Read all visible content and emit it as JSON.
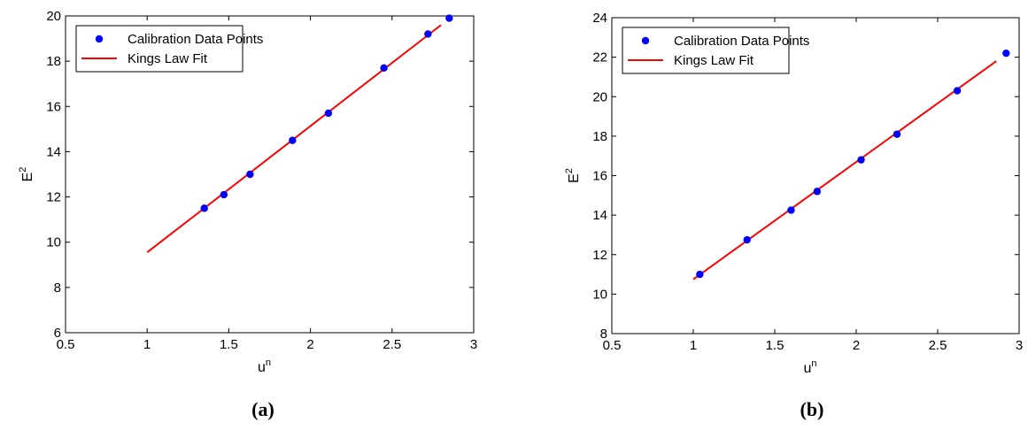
{
  "chart_data": [
    {
      "type": "scatter",
      "caption": "(a)",
      "xlabel_base": "u",
      "xlabel_sup": "n",
      "ylabel_base": "E",
      "ylabel_sup": "2",
      "xlim": [
        0.5,
        3
      ],
      "ylim": [
        6,
        20
      ],
      "xticks": [
        0.5,
        1,
        1.5,
        2,
        2.5,
        3
      ],
      "yticks": [
        6,
        8,
        10,
        12,
        14,
        16,
        18,
        20
      ],
      "xtick_labels": [
        "0.5",
        "1",
        "1.5",
        "2",
        "2.5",
        "3"
      ],
      "ytick_labels": [
        "6",
        "8",
        "10",
        "12",
        "14",
        "16",
        "18",
        "20"
      ],
      "grid": false,
      "legend_position": "top-left",
      "series": [
        {
          "name": "Calibration Data Points",
          "kind": "points",
          "color": "#0000ff",
          "x": [
            1.35,
            1.47,
            1.63,
            1.89,
            2.11,
            2.45,
            2.72,
            2.85
          ],
          "y": [
            11.5,
            12.1,
            13.0,
            14.5,
            15.7,
            17.7,
            19.2,
            19.9
          ]
        },
        {
          "name": "Kings Law Fit",
          "kind": "line",
          "color": "#ff0000",
          "x": [
            1.0,
            2.8
          ],
          "y": [
            9.55,
            19.6
          ]
        }
      ]
    },
    {
      "type": "scatter",
      "caption": "(b)",
      "xlabel_base": "u",
      "xlabel_sup": "n",
      "ylabel_base": "E",
      "ylabel_sup": "2",
      "xlim": [
        0.5,
        3
      ],
      "ylim": [
        8,
        24
      ],
      "xticks": [
        0.5,
        1,
        1.5,
        2,
        2.5,
        3
      ],
      "yticks": [
        8,
        10,
        12,
        14,
        16,
        18,
        20,
        22,
        24
      ],
      "xtick_labels": [
        "0.5",
        "1",
        "1.5",
        "2",
        "2.5",
        "3"
      ],
      "ytick_labels": [
        "8",
        "10",
        "12",
        "14",
        "16",
        "18",
        "20",
        "22",
        "24"
      ],
      "grid": false,
      "legend_position": "top-left",
      "series": [
        {
          "name": "Calibration Data Points",
          "kind": "points",
          "color": "#0000ff",
          "x": [
            1.04,
            1.33,
            1.6,
            1.76,
            2.03,
            2.25,
            2.62,
            2.92
          ],
          "y": [
            11.0,
            12.75,
            14.25,
            15.2,
            16.8,
            18.1,
            20.3,
            22.2
          ]
        },
        {
          "name": "Kings Law Fit",
          "kind": "line",
          "color": "#ff0000",
          "x": [
            1.0,
            2.86
          ],
          "y": [
            10.75,
            21.8
          ]
        }
      ]
    }
  ]
}
